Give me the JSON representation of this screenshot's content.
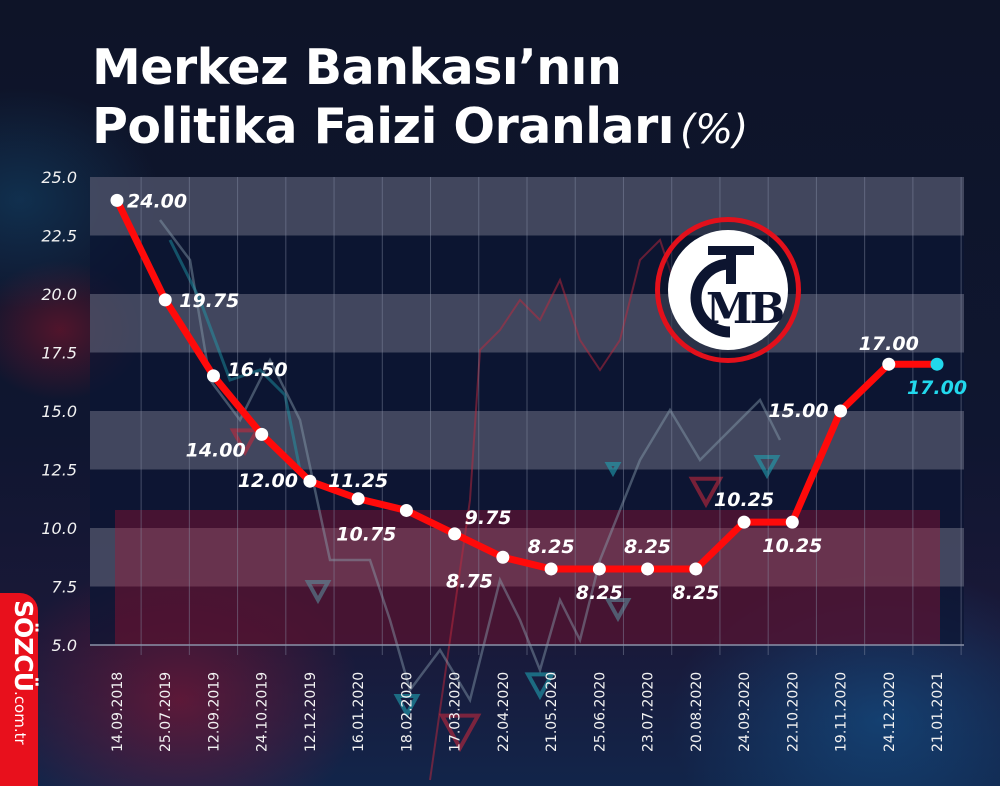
{
  "title": {
    "line1": "Merkez Bankası’nın",
    "line2": "Politika Faizi Oranları",
    "unit": "(%)"
  },
  "brand": {
    "name": "SÖZCÜ",
    "domain": ".com.tr",
    "badge_color": "#e8101c"
  },
  "logo": {
    "text": "TCMB",
    "ring_color": "#e3101b"
  },
  "colors": {
    "line": "#ff0a0a",
    "point": "#ffffff",
    "last_point": "#22d8ec",
    "band_light": "#4a4f66",
    "background": "#0e1428"
  },
  "chart_data": {
    "type": "line",
    "title": "Merkez Bankası’nın Politika Faizi Oranları (%)",
    "xlabel": "",
    "ylabel": "",
    "ylim": [
      5.0,
      25.0
    ],
    "yticks": [
      "25.0",
      "22.5",
      "20.0",
      "17.5",
      "15.0",
      "12.5",
      "10.0",
      "7.5",
      "5.0"
    ],
    "grid": true,
    "legend": null,
    "categories": [
      "14.09.2018",
      "25.07.2019",
      "12.09.2019",
      "24.10.2019",
      "12.12.2019",
      "16.01.2020",
      "18.02.2020",
      "17.03.2020",
      "22.04.2020",
      "21.05.2020",
      "25.06.2020",
      "23.07.2020",
      "20.08.2020",
      "24.09.2020",
      "22.10.2020",
      "19.11.2020",
      "24.12.2020",
      "21.01.2021"
    ],
    "values": [
      24.0,
      19.75,
      16.5,
      14.0,
      12.0,
      11.25,
      10.75,
      9.75,
      8.75,
      8.25,
      8.25,
      8.25,
      8.25,
      10.25,
      10.25,
      15.0,
      17.0,
      17.0
    ],
    "value_labels": [
      "24.00",
      "19.75",
      "16.50",
      "14.00",
      "12.00",
      "11.25",
      "10.75",
      "9.75",
      "8.75",
      "8.25",
      "8.25",
      "8.25",
      "8.25",
      "10.25",
      "10.25",
      "15.00",
      "17.00",
      "17.00"
    ],
    "highlight_last": true
  }
}
